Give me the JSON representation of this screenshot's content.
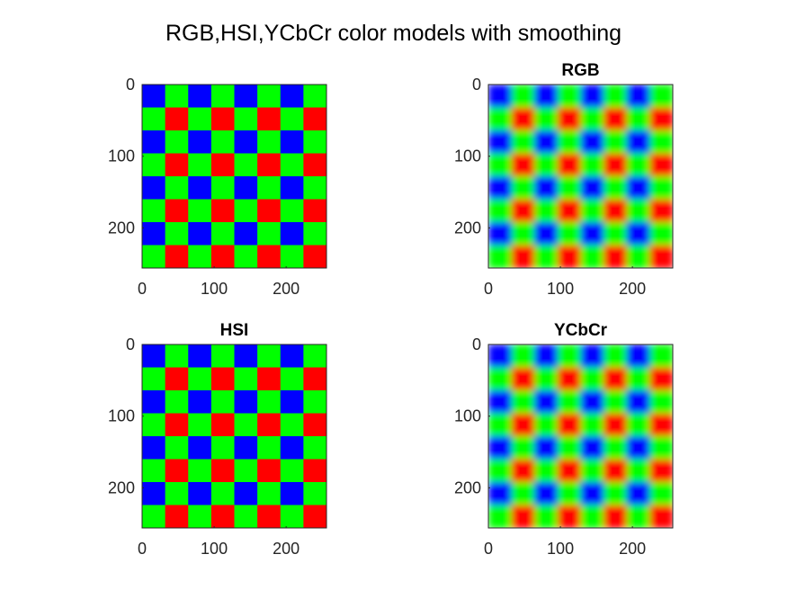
{
  "figure": {
    "title": "RGB,HSI,YCbCr color models with smoothing"
  },
  "colors": {
    "red": "#ff0000",
    "green": "#00ff00",
    "blue": "#0000ff"
  },
  "chart_data": [
    {
      "type": "heatmap",
      "title": "",
      "smoothed": false,
      "xlim": [
        0,
        256
      ],
      "ylim": [
        0,
        256
      ],
      "y_reversed": true,
      "xticks": [
        0,
        100,
        200
      ],
      "yticks": [
        0,
        100,
        200
      ],
      "grid": [
        [
          "blue",
          "green",
          "blue",
          "green",
          "blue",
          "green",
          "blue",
          "green"
        ],
        [
          "green",
          "red",
          "green",
          "red",
          "green",
          "red",
          "green",
          "red"
        ],
        [
          "blue",
          "green",
          "blue",
          "green",
          "blue",
          "green",
          "blue",
          "green"
        ],
        [
          "green",
          "red",
          "green",
          "red",
          "green",
          "red",
          "green",
          "red"
        ],
        [
          "blue",
          "green",
          "blue",
          "green",
          "blue",
          "green",
          "blue",
          "green"
        ],
        [
          "green",
          "red",
          "green",
          "red",
          "green",
          "red",
          "green",
          "red"
        ],
        [
          "blue",
          "green",
          "blue",
          "green",
          "blue",
          "green",
          "blue",
          "green"
        ],
        [
          "green",
          "red",
          "green",
          "red",
          "green",
          "red",
          "green",
          "red"
        ]
      ]
    },
    {
      "type": "heatmap",
      "title": "RGB",
      "smoothed": true,
      "xlim": [
        0,
        256
      ],
      "ylim": [
        0,
        256
      ],
      "y_reversed": true,
      "xticks": [
        0,
        100,
        200
      ],
      "yticks": [
        0,
        100,
        200
      ],
      "grid": [
        [
          "blue",
          "green",
          "blue",
          "green",
          "blue",
          "green",
          "blue",
          "green"
        ],
        [
          "green",
          "red",
          "green",
          "red",
          "green",
          "red",
          "green",
          "red"
        ],
        [
          "blue",
          "green",
          "blue",
          "green",
          "blue",
          "green",
          "blue",
          "green"
        ],
        [
          "green",
          "red",
          "green",
          "red",
          "green",
          "red",
          "green",
          "red"
        ],
        [
          "blue",
          "green",
          "blue",
          "green",
          "blue",
          "green",
          "blue",
          "green"
        ],
        [
          "green",
          "red",
          "green",
          "red",
          "green",
          "red",
          "green",
          "red"
        ],
        [
          "blue",
          "green",
          "blue",
          "green",
          "blue",
          "green",
          "blue",
          "green"
        ],
        [
          "green",
          "red",
          "green",
          "red",
          "green",
          "red",
          "green",
          "red"
        ]
      ]
    },
    {
      "type": "heatmap",
      "title": "HSI",
      "smoothed": false,
      "xlim": [
        0,
        256
      ],
      "ylim": [
        0,
        256
      ],
      "y_reversed": true,
      "xticks": [
        0,
        100,
        200
      ],
      "yticks": [
        0,
        100,
        200
      ],
      "grid": [
        [
          "blue",
          "green",
          "blue",
          "green",
          "blue",
          "green",
          "blue",
          "green"
        ],
        [
          "green",
          "red",
          "green",
          "red",
          "green",
          "red",
          "green",
          "red"
        ],
        [
          "blue",
          "green",
          "blue",
          "green",
          "blue",
          "green",
          "blue",
          "green"
        ],
        [
          "green",
          "red",
          "green",
          "red",
          "green",
          "red",
          "green",
          "red"
        ],
        [
          "blue",
          "green",
          "blue",
          "green",
          "blue",
          "green",
          "blue",
          "green"
        ],
        [
          "green",
          "red",
          "green",
          "red",
          "green",
          "red",
          "green",
          "red"
        ],
        [
          "blue",
          "green",
          "blue",
          "green",
          "blue",
          "green",
          "blue",
          "green"
        ],
        [
          "green",
          "red",
          "green",
          "red",
          "green",
          "red",
          "green",
          "red"
        ]
      ]
    },
    {
      "type": "heatmap",
      "title": "YCbCr",
      "smoothed": true,
      "xlim": [
        0,
        256
      ],
      "ylim": [
        0,
        256
      ],
      "y_reversed": true,
      "xticks": [
        0,
        100,
        200
      ],
      "yticks": [
        0,
        100,
        200
      ],
      "grid": [
        [
          "blue",
          "green",
          "blue",
          "green",
          "blue",
          "green",
          "blue",
          "green"
        ],
        [
          "green",
          "red",
          "green",
          "red",
          "green",
          "red",
          "green",
          "red"
        ],
        [
          "blue",
          "green",
          "blue",
          "green",
          "blue",
          "green",
          "blue",
          "green"
        ],
        [
          "green",
          "red",
          "green",
          "red",
          "green",
          "red",
          "green",
          "red"
        ],
        [
          "blue",
          "green",
          "blue",
          "green",
          "blue",
          "green",
          "blue",
          "green"
        ],
        [
          "green",
          "red",
          "green",
          "red",
          "green",
          "red",
          "green",
          "red"
        ],
        [
          "blue",
          "green",
          "blue",
          "green",
          "blue",
          "green",
          "blue",
          "green"
        ],
        [
          "green",
          "red",
          "green",
          "red",
          "green",
          "red",
          "green",
          "red"
        ]
      ]
    }
  ]
}
